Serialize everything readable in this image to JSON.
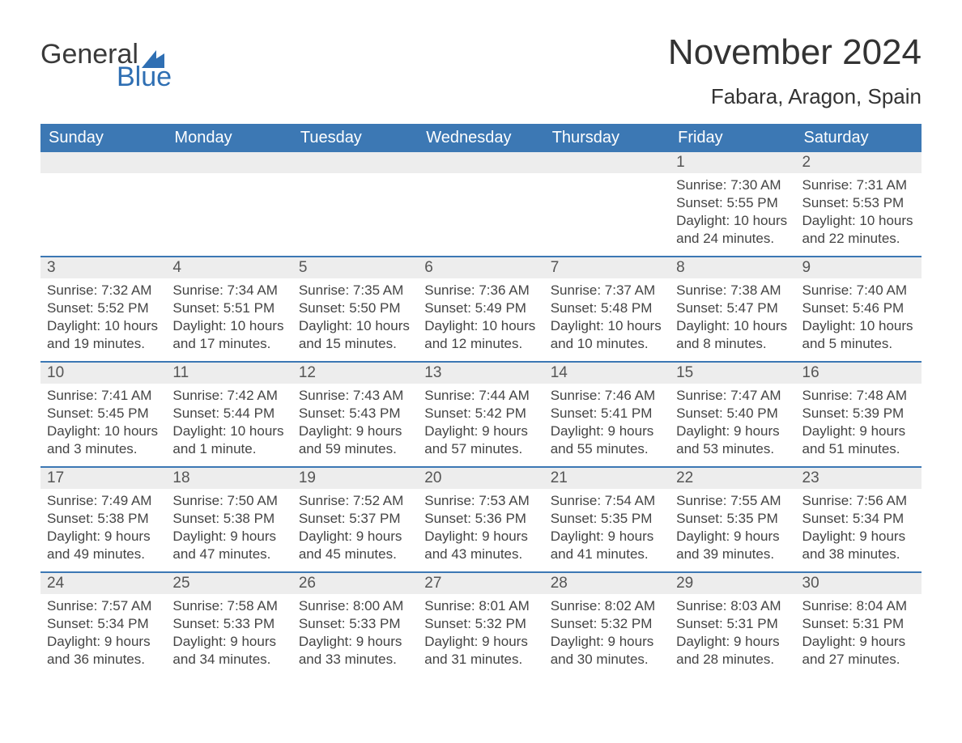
{
  "brand": {
    "word1": "General",
    "word2": "Blue",
    "accent_color": "#2f6fb3"
  },
  "title": "November 2024",
  "location": "Fabara, Aragon, Spain",
  "colors": {
    "header_bg": "#3c78b4",
    "header_text": "#ffffff",
    "row_separator": "#3c78b4",
    "daynum_bg": "#ededed",
    "text": "#333333"
  },
  "weekdays": [
    "Sunday",
    "Monday",
    "Tuesday",
    "Wednesday",
    "Thursday",
    "Friday",
    "Saturday"
  ],
  "weeks": [
    [
      null,
      null,
      null,
      null,
      null,
      {
        "n": "1",
        "sunrise": "7:30 AM",
        "sunset": "5:55 PM",
        "daylight": "10 hours and 24 minutes."
      },
      {
        "n": "2",
        "sunrise": "7:31 AM",
        "sunset": "5:53 PM",
        "daylight": "10 hours and 22 minutes."
      }
    ],
    [
      {
        "n": "3",
        "sunrise": "7:32 AM",
        "sunset": "5:52 PM",
        "daylight": "10 hours and 19 minutes."
      },
      {
        "n": "4",
        "sunrise": "7:34 AM",
        "sunset": "5:51 PM",
        "daylight": "10 hours and 17 minutes."
      },
      {
        "n": "5",
        "sunrise": "7:35 AM",
        "sunset": "5:50 PM",
        "daylight": "10 hours and 15 minutes."
      },
      {
        "n": "6",
        "sunrise": "7:36 AM",
        "sunset": "5:49 PM",
        "daylight": "10 hours and 12 minutes."
      },
      {
        "n": "7",
        "sunrise": "7:37 AM",
        "sunset": "5:48 PM",
        "daylight": "10 hours and 10 minutes."
      },
      {
        "n": "8",
        "sunrise": "7:38 AM",
        "sunset": "5:47 PM",
        "daylight": "10 hours and 8 minutes."
      },
      {
        "n": "9",
        "sunrise": "7:40 AM",
        "sunset": "5:46 PM",
        "daylight": "10 hours and 5 minutes."
      }
    ],
    [
      {
        "n": "10",
        "sunrise": "7:41 AM",
        "sunset": "5:45 PM",
        "daylight": "10 hours and 3 minutes."
      },
      {
        "n": "11",
        "sunrise": "7:42 AM",
        "sunset": "5:44 PM",
        "daylight": "10 hours and 1 minute."
      },
      {
        "n": "12",
        "sunrise": "7:43 AM",
        "sunset": "5:43 PM",
        "daylight": "9 hours and 59 minutes."
      },
      {
        "n": "13",
        "sunrise": "7:44 AM",
        "sunset": "5:42 PM",
        "daylight": "9 hours and 57 minutes."
      },
      {
        "n": "14",
        "sunrise": "7:46 AM",
        "sunset": "5:41 PM",
        "daylight": "9 hours and 55 minutes."
      },
      {
        "n": "15",
        "sunrise": "7:47 AM",
        "sunset": "5:40 PM",
        "daylight": "9 hours and 53 minutes."
      },
      {
        "n": "16",
        "sunrise": "7:48 AM",
        "sunset": "5:39 PM",
        "daylight": "9 hours and 51 minutes."
      }
    ],
    [
      {
        "n": "17",
        "sunrise": "7:49 AM",
        "sunset": "5:38 PM",
        "daylight": "9 hours and 49 minutes."
      },
      {
        "n": "18",
        "sunrise": "7:50 AM",
        "sunset": "5:38 PM",
        "daylight": "9 hours and 47 minutes."
      },
      {
        "n": "19",
        "sunrise": "7:52 AM",
        "sunset": "5:37 PM",
        "daylight": "9 hours and 45 minutes."
      },
      {
        "n": "20",
        "sunrise": "7:53 AM",
        "sunset": "5:36 PM",
        "daylight": "9 hours and 43 minutes."
      },
      {
        "n": "21",
        "sunrise": "7:54 AM",
        "sunset": "5:35 PM",
        "daylight": "9 hours and 41 minutes."
      },
      {
        "n": "22",
        "sunrise": "7:55 AM",
        "sunset": "5:35 PM",
        "daylight": "9 hours and 39 minutes."
      },
      {
        "n": "23",
        "sunrise": "7:56 AM",
        "sunset": "5:34 PM",
        "daylight": "9 hours and 38 minutes."
      }
    ],
    [
      {
        "n": "24",
        "sunrise": "7:57 AM",
        "sunset": "5:34 PM",
        "daylight": "9 hours and 36 minutes."
      },
      {
        "n": "25",
        "sunrise": "7:58 AM",
        "sunset": "5:33 PM",
        "daylight": "9 hours and 34 minutes."
      },
      {
        "n": "26",
        "sunrise": "8:00 AM",
        "sunset": "5:33 PM",
        "daylight": "9 hours and 33 minutes."
      },
      {
        "n": "27",
        "sunrise": "8:01 AM",
        "sunset": "5:32 PM",
        "daylight": "9 hours and 31 minutes."
      },
      {
        "n": "28",
        "sunrise": "8:02 AM",
        "sunset": "5:32 PM",
        "daylight": "9 hours and 30 minutes."
      },
      {
        "n": "29",
        "sunrise": "8:03 AM",
        "sunset": "5:31 PM",
        "daylight": "9 hours and 28 minutes."
      },
      {
        "n": "30",
        "sunrise": "8:04 AM",
        "sunset": "5:31 PM",
        "daylight": "9 hours and 27 minutes."
      }
    ]
  ],
  "labels": {
    "sunrise": "Sunrise: ",
    "sunset": "Sunset: ",
    "daylight": "Daylight: "
  }
}
